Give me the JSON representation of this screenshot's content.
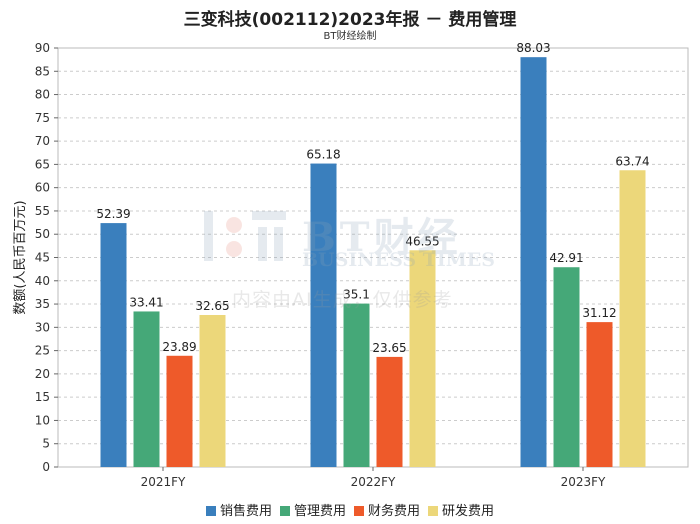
{
  "title": "三变科技(002112)2023年报 － 费用管理",
  "subtitle": "BT财经绘制",
  "watermark": {
    "brand": "BT财经",
    "brand_en": "BUSINESS TIMES",
    "note": "内容由AI生成，仅供参考"
  },
  "chart_data": {
    "type": "bar",
    "categories": [
      "2021FY",
      "2022FY",
      "2023FY"
    ],
    "series": [
      {
        "name": "销售费用",
        "color": "#3a7fbd",
        "values": [
          52.39,
          65.18,
          88.03
        ]
      },
      {
        "name": "管理费用",
        "color": "#45a878",
        "values": [
          33.41,
          35.1,
          42.91
        ]
      },
      {
        "name": "财务费用",
        "color": "#ee5a2a",
        "values": [
          23.89,
          23.65,
          31.12
        ]
      },
      {
        "name": "研发费用",
        "color": "#ecd77a",
        "values": [
          32.65,
          46.55,
          63.74
        ]
      }
    ],
    "value_labels": [
      [
        "52.39",
        "65.18",
        "88.03"
      ],
      [
        "33.41",
        "35.1",
        "42.91"
      ],
      [
        "23.89",
        "23.65",
        "31.12"
      ],
      [
        "32.65",
        "46.55",
        "63.74"
      ]
    ],
    "ylabel": "数额(人民币百万元)",
    "ylim": [
      0,
      90
    ],
    "yticks": [
      0,
      5,
      10,
      15,
      20,
      25,
      30,
      35,
      40,
      45,
      50,
      55,
      60,
      65,
      70,
      75,
      80,
      85,
      90
    ],
    "grid": true,
    "legend_position": "bottom"
  }
}
